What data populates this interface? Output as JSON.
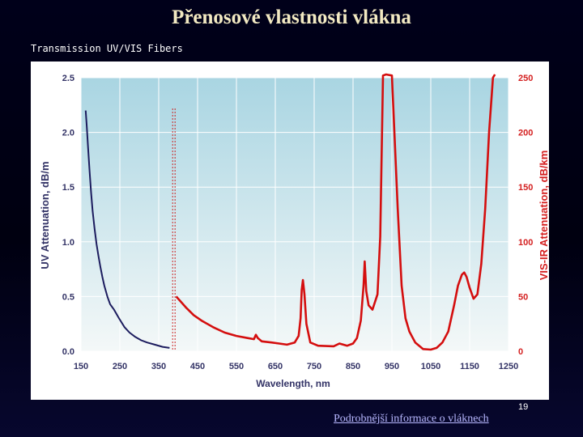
{
  "slide": {
    "title": "Přenosové vlastnosti vlákna",
    "subtitle": "Transmission UV/VIS Fibers",
    "page_number": "19",
    "link_text": "Podrobnější informace o vláknech"
  },
  "colors": {
    "uv_series": "#1c1c5e",
    "visir_series": "#d40e0e",
    "right_axis": "#d42020",
    "left_axis": "#333366",
    "plot_top": "#a9d5e2",
    "plot_bottom": "#f4f8f8"
  },
  "chart_data": {
    "type": "line",
    "title": "",
    "xlabel": "Wavelength, nm",
    "ylabel_left": "UV Attenuation, dB/m",
    "ylabel_right": "VIS-IR Attenuation, dB/km",
    "xlim": [
      150,
      1250
    ],
    "ylim_left": [
      0,
      2.5
    ],
    "ylim_right": [
      0,
      250
    ],
    "x_ticks": [
      "150",
      "250",
      "350",
      "450",
      "550",
      "650",
      "750",
      "850",
      "950",
      "1050",
      "1150",
      "1250"
    ],
    "x_tick_values": [
      150,
      250,
      350,
      450,
      550,
      650,
      750,
      850,
      950,
      1050,
      1150,
      1250
    ],
    "y_left_ticks": [
      "0.0",
      "0.5",
      "1.0",
      "1.5",
      "2.0",
      "2.5"
    ],
    "y_left_tick_values": [
      0,
      0.5,
      1.0,
      1.5,
      2.0,
      2.5
    ],
    "y_right_ticks": [
      "0",
      "50",
      "100",
      "150",
      "200",
      "250"
    ],
    "y_right_tick_values": [
      0,
      50,
      100,
      150,
      200,
      250
    ],
    "divider_x": 390,
    "series": [
      {
        "name": "UV",
        "axis": "left",
        "x": [
          162,
          165,
          168,
          172,
          176,
          180,
          185,
          190,
          195,
          200,
          205,
          210,
          218,
          225,
          235,
          248,
          262,
          275,
          290,
          305,
          320,
          340,
          360,
          378
        ],
        "y": [
          2.2,
          2.05,
          1.88,
          1.65,
          1.45,
          1.28,
          1.12,
          0.98,
          0.87,
          0.77,
          0.68,
          0.6,
          0.5,
          0.43,
          0.38,
          0.3,
          0.22,
          0.17,
          0.13,
          0.1,
          0.08,
          0.06,
          0.04,
          0.03
        ]
      },
      {
        "name": "VIS-IR",
        "axis": "right",
        "x": [
          395,
          405,
          420,
          440,
          460,
          490,
          520,
          550,
          580,
          595,
          600,
          605,
          615,
          640,
          660,
          680,
          700,
          710,
          715,
          718,
          721,
          725,
          730,
          740,
          760,
          800,
          815,
          825,
          835,
          850,
          860,
          870,
          877,
          880,
          884,
          890,
          900,
          913,
          920,
          927,
          935,
          950,
          965,
          975,
          985,
          995,
          1010,
          1030,
          1050,
          1065,
          1080,
          1095,
          1110,
          1120,
          1130,
          1136,
          1142,
          1150,
          1160,
          1170,
          1180,
          1190,
          1200,
          1210,
          1215
        ],
        "y": [
          50,
          46,
          40,
          33,
          28,
          22,
          17,
          14,
          12,
          11,
          15,
          12,
          9,
          8,
          7,
          6,
          8,
          14,
          30,
          56,
          65,
          52,
          25,
          8,
          5,
          4.5,
          7,
          6,
          5,
          7,
          12,
          28,
          60,
          82,
          55,
          42,
          38,
          52,
          105,
          252,
          255,
          252,
          130,
          60,
          30,
          18,
          8,
          2,
          1.5,
          3,
          8,
          18,
          42,
          60,
          70,
          72,
          68,
          58,
          48,
          52,
          80,
          130,
          200,
          250,
          255
        ]
      }
    ]
  }
}
